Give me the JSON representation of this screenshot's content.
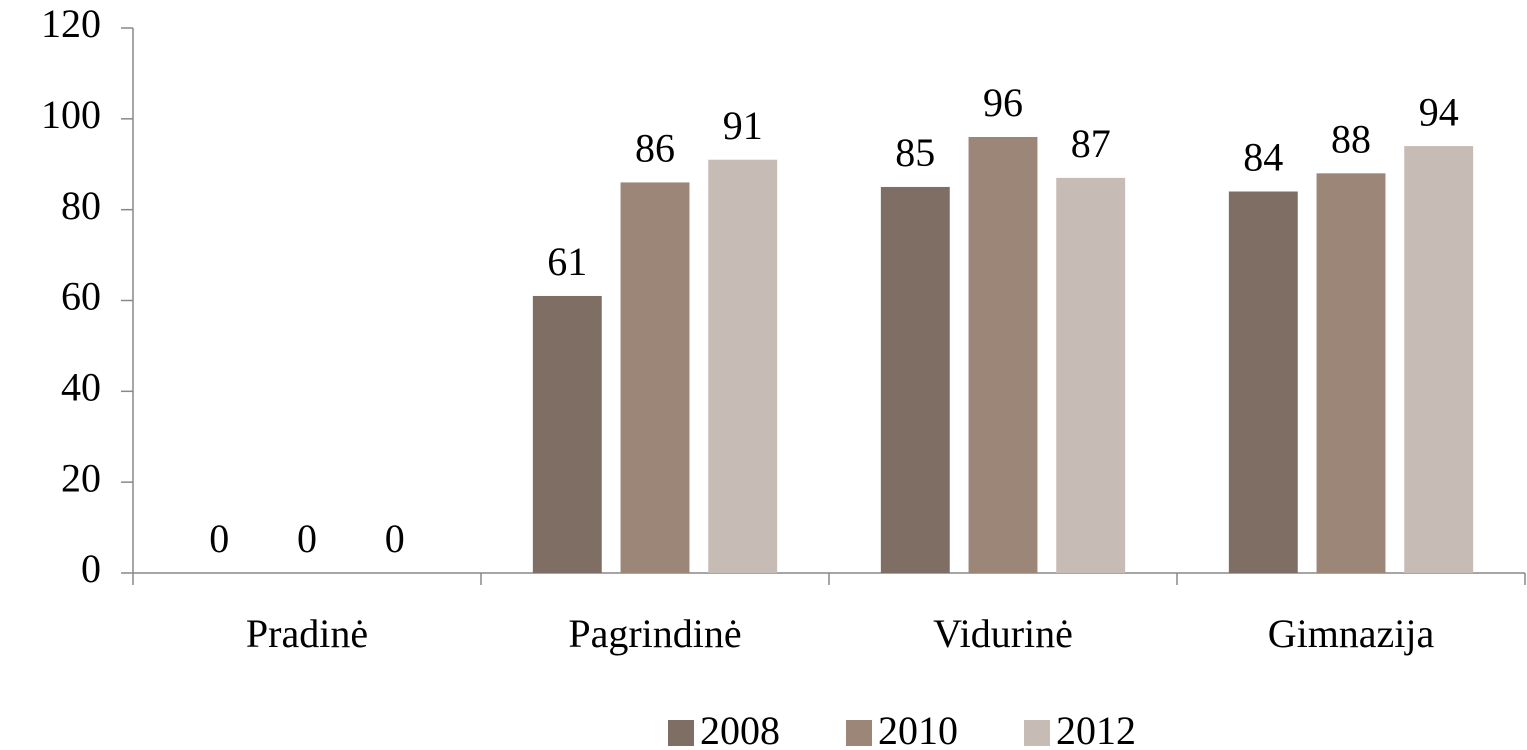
{
  "chart_data": {
    "type": "bar",
    "categories": [
      "Pradinė",
      "Pagrindinė",
      "Vidurinė",
      "Gimnazija"
    ],
    "series": [
      {
        "name": "2008",
        "color": "#7f6e63",
        "values": [
          0,
          61,
          85,
          84
        ]
      },
      {
        "name": "2010",
        "color": "#9c8677",
        "values": [
          0,
          86,
          96,
          88
        ]
      },
      {
        "name": "2012",
        "color": "#c6bbb5",
        "values": [
          0,
          91,
          87,
          94
        ]
      }
    ],
    "ylim": [
      0,
      120
    ],
    "yticks": [
      0,
      20,
      40,
      60,
      80,
      100,
      120
    ],
    "grid": false,
    "legend": "bottom"
  }
}
